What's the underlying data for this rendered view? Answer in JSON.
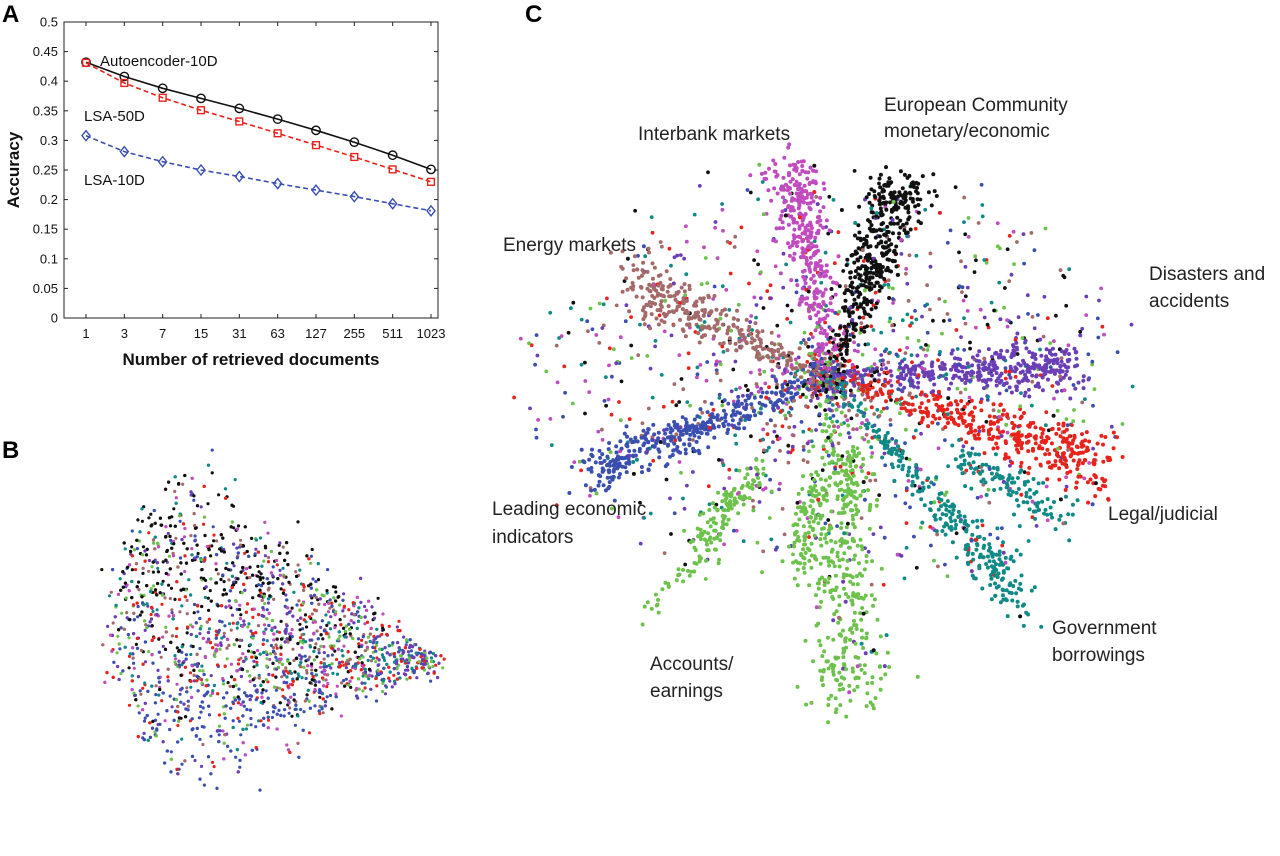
{
  "panels": {
    "a": "A",
    "b": "B",
    "c": "C"
  },
  "colors": {
    "black": "#111111",
    "red": "#e8231b",
    "blue": "#3a4fb0",
    "magenta": "#c04cc0",
    "brown": "#a46a6a",
    "green": "#6cc24a",
    "teal": "#0f8a86",
    "purple": "#6a3fb6"
  },
  "chart_data": [
    {
      "type": "line",
      "panel": "A",
      "xlabel": "Number of retrieved documents",
      "ylabel": "Accuracy",
      "x_scale": "log",
      "x": [
        1,
        3,
        7,
        15,
        31,
        63,
        127,
        255,
        511,
        1023
      ],
      "x_tick_labels": [
        "1",
        "3",
        "7",
        "15",
        "31",
        "63",
        "127",
        "255",
        "511",
        "1023"
      ],
      "ylim": [
        0,
        0.5
      ],
      "y_ticks": [
        "0",
        "0.05",
        "0.1",
        "0.15",
        "0.2",
        "0.25",
        "0.3",
        "0.35",
        "0.4",
        "0.45",
        "0.5"
      ],
      "series": [
        {
          "name": "Autoencoder-10D",
          "color": "#111111",
          "line": "solid",
          "marker": "circle",
          "values": [
            0.432,
            0.408,
            0.388,
            0.371,
            0.354,
            0.336,
            0.317,
            0.297,
            0.275,
            0.251
          ]
        },
        {
          "name": "LSA-50D",
          "color": "#e8231b",
          "line": "dashed",
          "marker": "square",
          "values": [
            0.431,
            0.397,
            0.372,
            0.351,
            0.332,
            0.312,
            0.292,
            0.272,
            0.251,
            0.23
          ]
        },
        {
          "name": "LSA-10D",
          "color": "#3a4fb0",
          "line": "dashed",
          "marker": "diamond",
          "values": [
            0.308,
            0.281,
            0.264,
            0.25,
            0.239,
            0.227,
            0.216,
            0.205,
            0.193,
            0.181
          ]
        }
      ]
    },
    {
      "type": "scatter",
      "panel": "B",
      "description_note": "",
      "series": [
        {
          "color": "#111111"
        },
        {
          "color": "#e8231b"
        },
        {
          "color": "#3a4fb0"
        },
        {
          "color": "#c04cc0"
        },
        {
          "color": "#6cc24a"
        },
        {
          "color": "#0f8a86"
        },
        {
          "color": "#6a3fb6"
        },
        {
          "color": "#a46a6a"
        }
      ]
    },
    {
      "type": "scatter",
      "panel": "C",
      "clusters": [
        {
          "label_lines": [
            "European Community",
            "monetary/economic"
          ],
          "color": "#111111"
        },
        {
          "label_lines": [
            "Interbank markets"
          ],
          "color": "#c04cc0"
        },
        {
          "label_lines": [
            "Energy markets"
          ],
          "color": "#a46a6a"
        },
        {
          "label_lines": [
            "Disasters and",
            "accidents"
          ],
          "color": "#6a3fb6"
        },
        {
          "label_lines": [
            "Leading economic",
            "indicators"
          ],
          "color": "#3a4fb0"
        },
        {
          "label_lines": [
            "Legal/judicial"
          ],
          "color": "#e8231b"
        },
        {
          "label_lines": [
            "Government",
            "borrowings"
          ],
          "color": "#0f8a86"
        },
        {
          "label_lines": [
            "Accounts/",
            "earnings"
          ],
          "color": "#6cc24a"
        }
      ]
    }
  ]
}
